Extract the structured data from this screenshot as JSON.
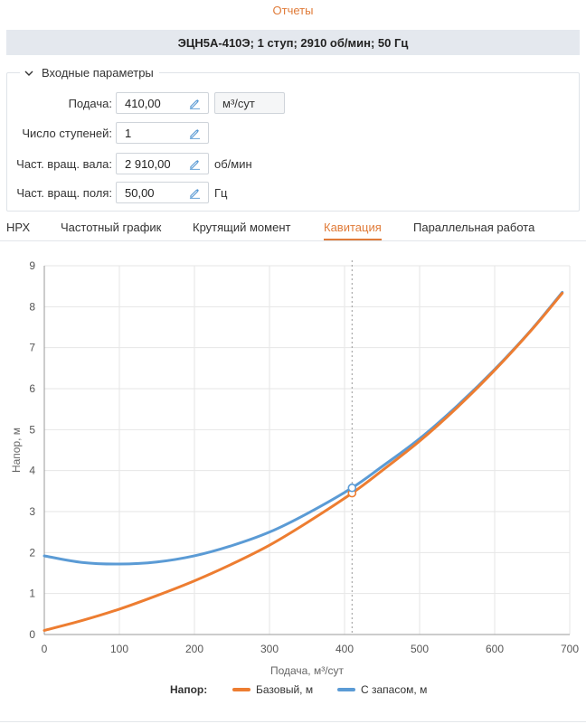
{
  "header": {
    "reports_link": "Отчеты",
    "title": "ЭЦН5А-410Э; 1 ступ; 2910 об/мин; 50 Гц"
  },
  "params": {
    "section_title": "Входные параметры",
    "rows": [
      {
        "label": "Подача:",
        "value": "410,00",
        "unit": "м³/сут",
        "unit_boxed": true
      },
      {
        "label": "Число ступеней:",
        "value": "1",
        "unit": "",
        "unit_boxed": false
      },
      {
        "label": "Част. вращ. вала:",
        "value": "2 910,00",
        "unit": "об/мин",
        "unit_boxed": false
      },
      {
        "label": "Част. вращ. поля:",
        "value": "50,00",
        "unit": "Гц",
        "unit_boxed": false
      }
    ]
  },
  "tabs": [
    {
      "label": "НРХ",
      "active": false
    },
    {
      "label": "Частотный график",
      "active": false
    },
    {
      "label": "Крутящий момент",
      "active": false
    },
    {
      "label": "Кавитация",
      "active": true
    },
    {
      "label": "Параллельная работа",
      "active": false
    }
  ],
  "colors": {
    "accent": "#e07b39",
    "series_base": "#ed7d31",
    "series_reserve": "#5b9bd5",
    "grid": "#e6e6e6"
  },
  "icons": {
    "edit": "pencil-icon",
    "collapse": "chevron-down-icon"
  },
  "chart_data": {
    "type": "line",
    "xlabel": "Подача, м³/сут",
    "ylabel": "Напор, м",
    "xlim": [
      0,
      700
    ],
    "ylim": [
      0,
      9
    ],
    "xticks": [
      0,
      100,
      200,
      300,
      400,
      500,
      600,
      700
    ],
    "yticks": [
      0,
      1,
      2,
      3,
      4,
      5,
      6,
      7,
      8,
      9
    ],
    "grid": true,
    "legend_title": "Напор:",
    "legend_position": "bottom",
    "marker_x": 410,
    "series": [
      {
        "name": "Базовый, м",
        "x": [
          0,
          50,
          100,
          150,
          200,
          250,
          300,
          350,
          410,
          450,
          500,
          550,
          600,
          650,
          690
        ],
        "y": [
          0.1,
          0.34,
          0.62,
          0.95,
          1.31,
          1.72,
          2.18,
          2.73,
          3.45,
          4.0,
          4.72,
          5.54,
          6.45,
          7.45,
          8.33
        ]
      },
      {
        "name": "С запасом, м",
        "x": [
          0,
          50,
          100,
          150,
          200,
          250,
          300,
          350,
          410,
          450,
          500,
          550,
          600,
          650,
          690
        ],
        "y": [
          1.92,
          1.76,
          1.72,
          1.77,
          1.92,
          2.17,
          2.5,
          2.95,
          3.58,
          4.1,
          4.78,
          5.58,
          6.47,
          7.46,
          8.35
        ]
      }
    ]
  }
}
